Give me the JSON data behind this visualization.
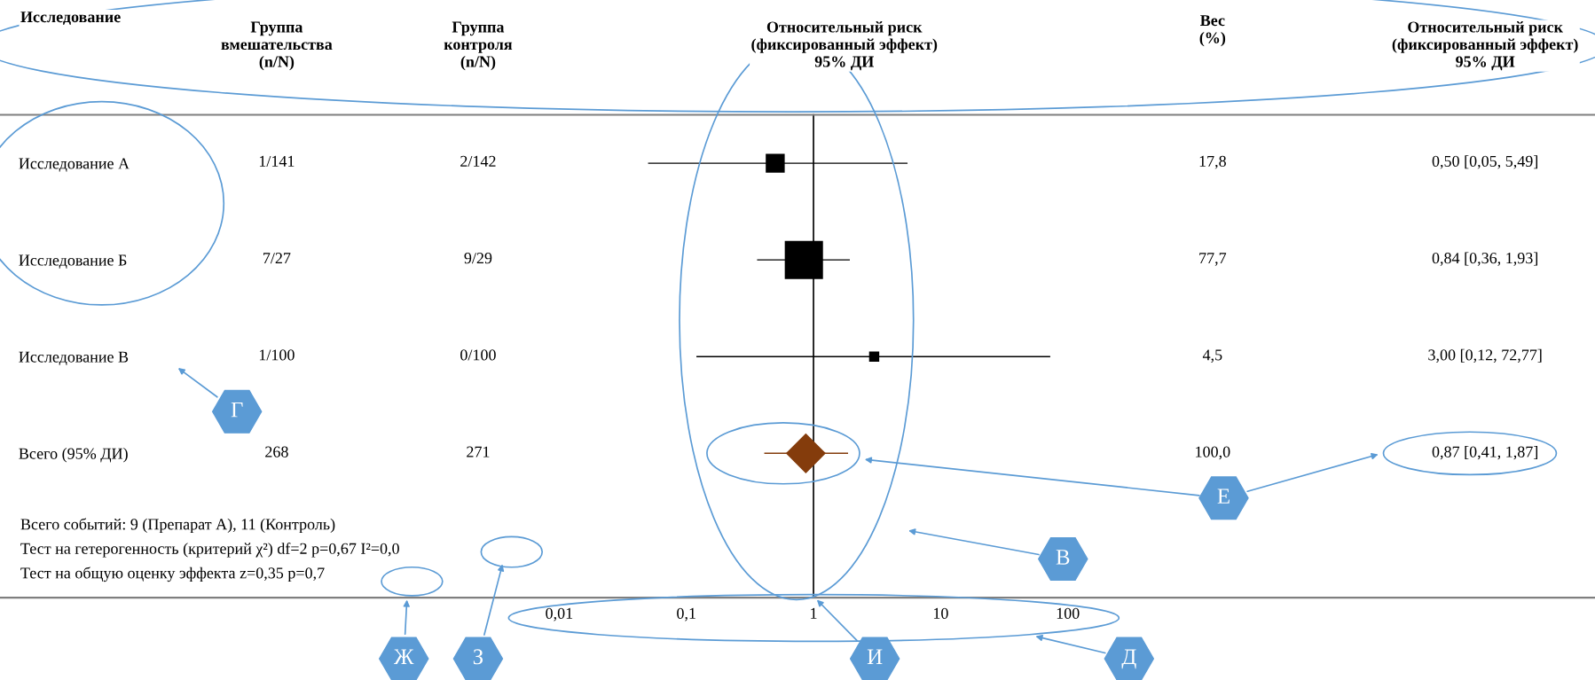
{
  "chart_data": {
    "type": "scatter",
    "orientation": "horizontal",
    "log": "x",
    "categories": [
      "Исследование А",
      "Исследование Б",
      "Исследование В",
      "Всего (95% ДИ)"
    ],
    "xlim": [
      4e-07,
      1400000.0
    ],
    "xticks": [
      {
        "value": 0.01,
        "label": "0,01"
      },
      {
        "value": 0.1,
        "label": "0,1"
      },
      1,
      10,
      100
    ],
    "ref_lines": [
      {
        "axis": "x",
        "value": 1,
        "color": "#000000"
      }
    ],
    "series": [
      {
        "type": "bubble",
        "color": "#000000",
        "marker": "square",
        "values": [
          0.5,
          0.84,
          3.0,
          null
        ],
        "errors": [
          [
            0.05,
            5.49
          ],
          [
            0.36,
            1.93
          ],
          [
            0.12,
            72.77
          ],
          null
        ],
        "sizes": [
          0.23,
          1,
          0.058,
          null
        ]
      },
      {
        "color": "#843c0c",
        "marker": "diamond",
        "values": [
          null,
          null,
          null,
          0.87
        ],
        "errors": [
          null,
          null,
          null,
          [
            0.41,
            1.87
          ]
        ]
      }
    ],
    "annotations": [
      "Исследование",
      "Группа\nвмешательства\n(n/N)",
      "Группа\nконтроля\n(n/N)",
      "Относительный риск\n(фиксированный эффект)\n95% ДИ",
      "Вес\n(%)",
      "Относительный риск\n(фиксированный эффект)\n95% ДИ",
      "1/141",
      "2/142",
      "17,8",
      "0,50 [0,05, 5,49]",
      "7/27",
      "9/29",
      "77,7",
      "0,84 [0,36, 1,93]",
      "1/100",
      "0/100",
      "4,5",
      "3,00 [0,12, 72,77]",
      "268",
      "271",
      "100,0",
      "0,87 [0,41, 1,87]",
      "Всего событий: 9 (Препарат А), 11 (Контроль)",
      "Тест на гетерогенность (критерий χ²) df=2 p=0,67 I²=0,0",
      "Тест на общую оценку эффекта z=0,35 p=0,7",
      "Г",
      "Е",
      "В",
      "Ж",
      "З",
      "И",
      "Д"
    ]
  }
}
